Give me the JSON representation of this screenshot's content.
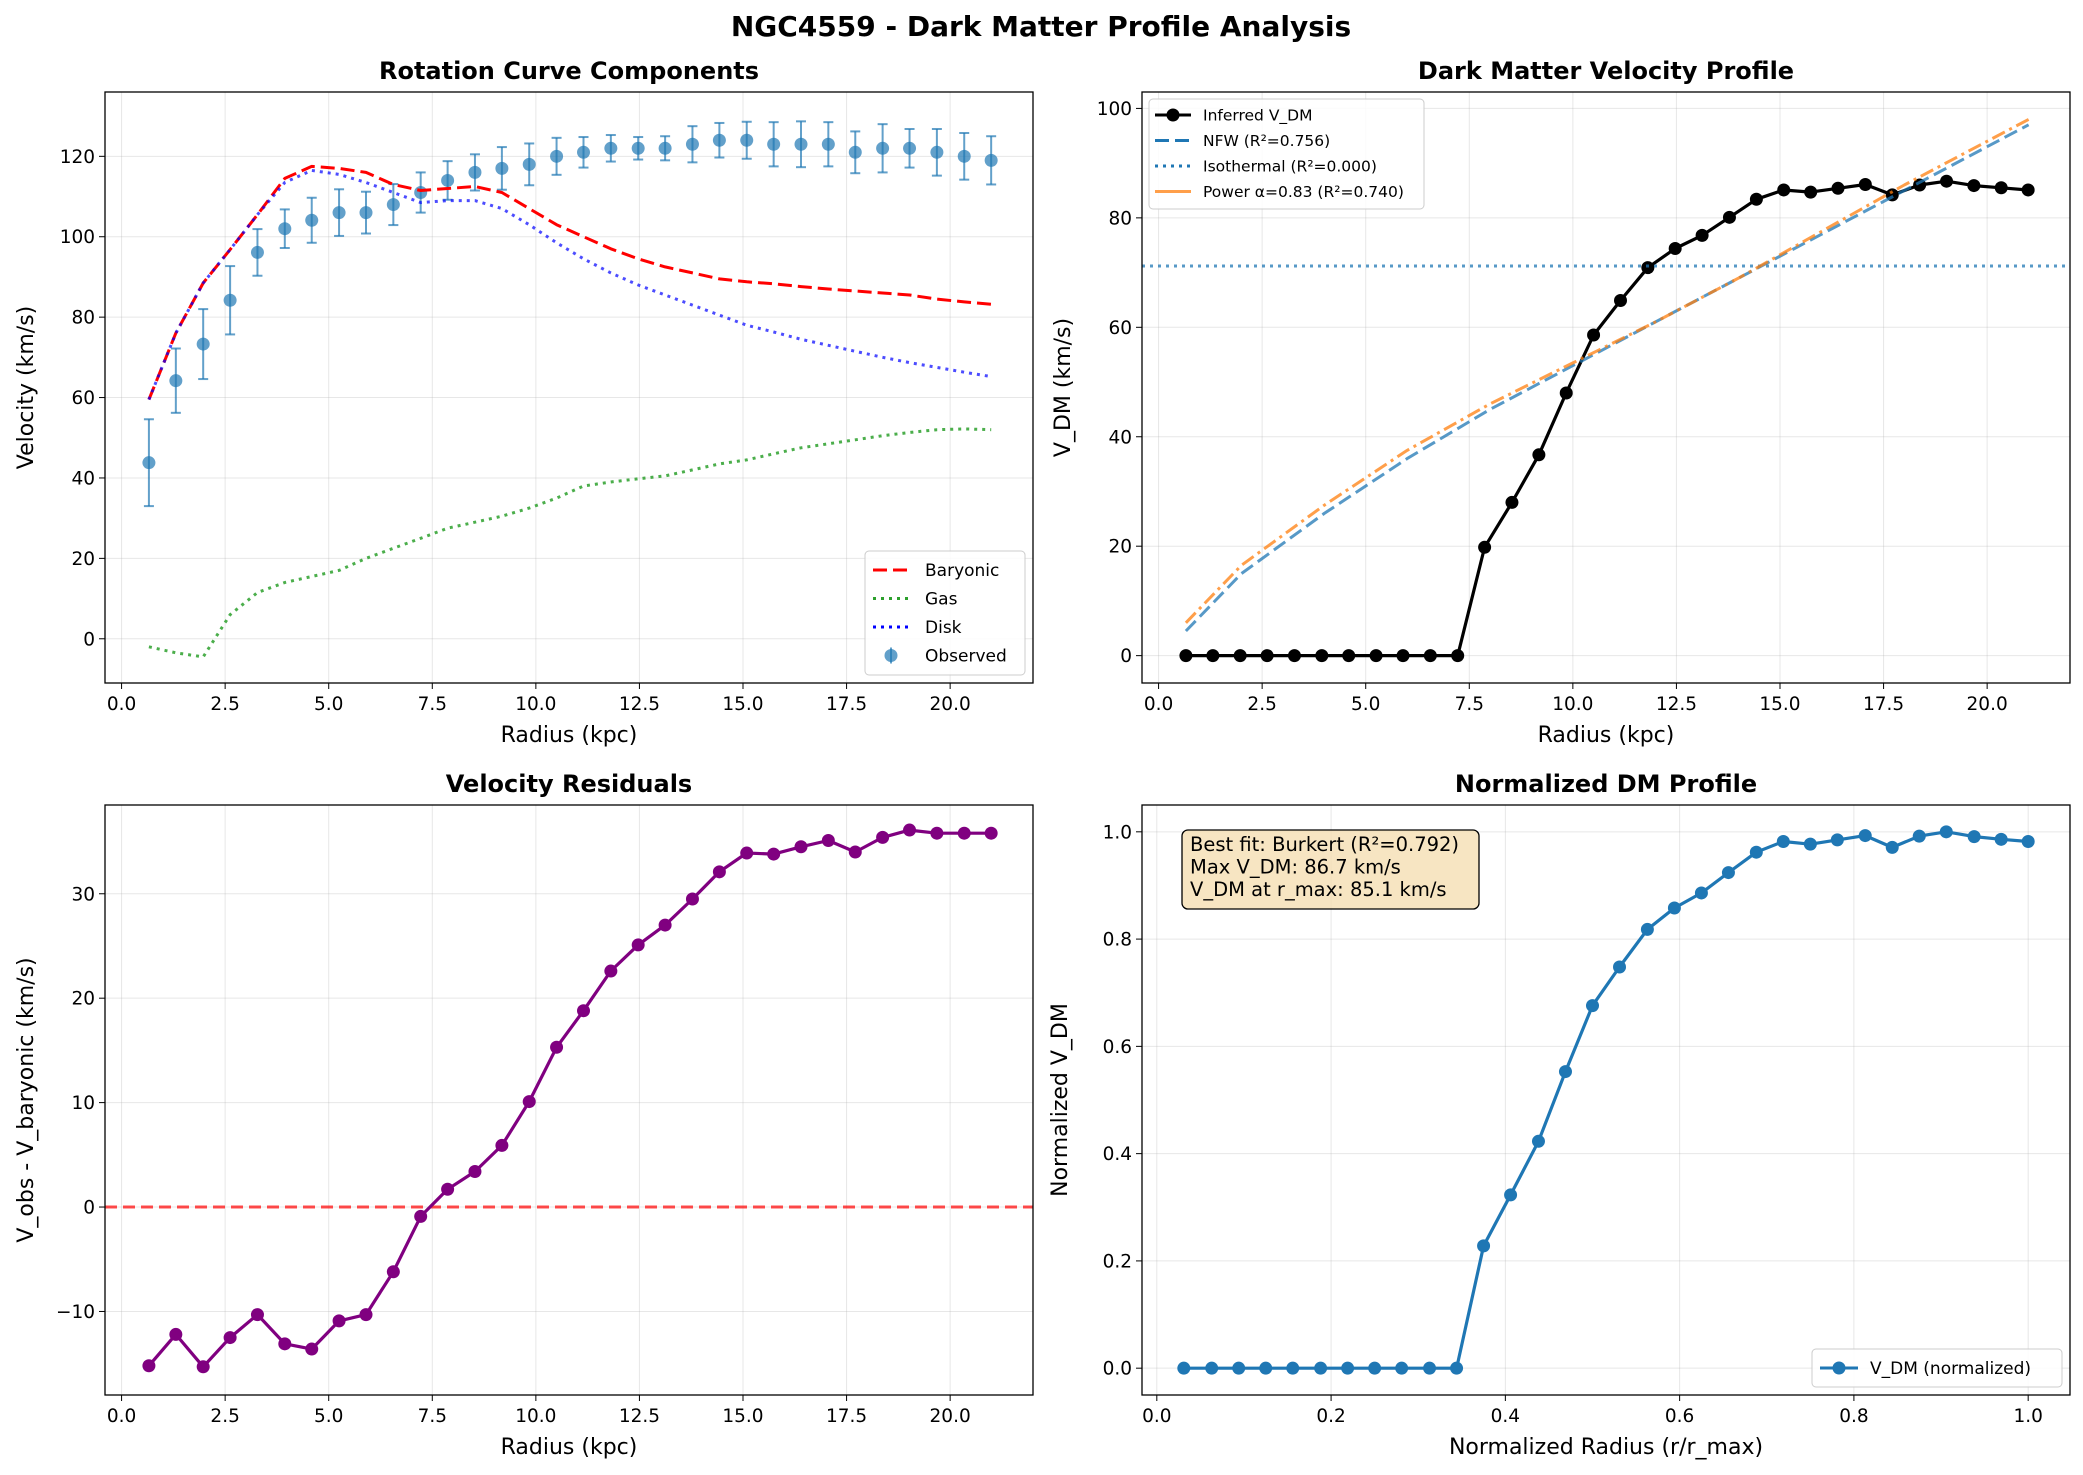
{
  "figure": {
    "title": "NGC4559 - Dark Matter Profile Analysis"
  },
  "chart_data": [
    {
      "type": "line",
      "title": "Rotation Curve Components",
      "xlabel": "Radius (kpc)",
      "ylabel": "Velocity (km/s)",
      "xlim": [
        -0.4,
        22.0
      ],
      "ylim": [
        -11,
        136
      ],
      "xticks": [
        "0.0",
        "2.5",
        "5.0",
        "7.5",
        "10.0",
        "12.5",
        "15.0",
        "17.5",
        "20.0"
      ],
      "yticks": [
        "0",
        "20",
        "40",
        "60",
        "80",
        "100",
        "120"
      ],
      "grid": true,
      "legend_position": "lower right",
      "legend": [
        "Baryonic",
        "Gas",
        "Disk",
        "Observed"
      ],
      "x": [
        0.66,
        1.31,
        1.97,
        2.62,
        3.28,
        3.94,
        4.59,
        5.25,
        5.9,
        6.56,
        7.22,
        7.87,
        8.53,
        9.18,
        9.84,
        10.5,
        11.15,
        11.81,
        12.47,
        13.12,
        13.78,
        14.43,
        15.09,
        15.74,
        16.4,
        17.06,
        17.71,
        18.37,
        19.02,
        19.68,
        20.34,
        20.99
      ],
      "series": [
        {
          "name": "Observed",
          "style": "errorbar",
          "color": "#1f77b4",
          "values": [
            43.8,
            64.2,
            73.3,
            84.2,
            96.1,
            102.0,
            104.1,
            106.0,
            106.0,
            108.0,
            111.0,
            114.0,
            116.0,
            117.0,
            118.0,
            120.0,
            121.0,
            122.0,
            122.0,
            122.0,
            123.0,
            124.0,
            124.0,
            123.0,
            123.0,
            123.0,
            121.0,
            122.0,
            122.0,
            121.0,
            120.0,
            119.0
          ],
          "errors": [
            10.8,
            8.0,
            8.7,
            8.5,
            5.8,
            4.8,
            5.6,
            5.8,
            5.2,
            5.1,
            5.0,
            4.8,
            4.5,
            5.3,
            5.2,
            4.6,
            3.8,
            3.3,
            2.8,
            3.0,
            4.5,
            4.3,
            4.6,
            5.5,
            5.7,
            5.5,
            5.2,
            6.0,
            4.8,
            5.8,
            5.8,
            6.0
          ]
        },
        {
          "name": "Baryonic",
          "style": "dashed",
          "color": "#ff0000",
          "values": [
            59.5,
            76.0,
            88.5,
            96.8,
            105.5,
            114.5,
            117.5,
            117.0,
            116.0,
            113.0,
            111.5,
            112.0,
            112.5,
            111.0,
            107.0,
            103.0,
            100.0,
            97.0,
            94.5,
            92.5,
            91.0,
            89.5,
            88.8,
            88.3,
            87.6,
            87.0,
            86.5,
            86.0,
            85.5,
            84.5,
            83.8,
            83.2
          ]
        },
        {
          "name": "Gas",
          "style": "dotted",
          "color": "#2ca02c",
          "values": [
            -2.0,
            -3.5,
            -4.5,
            6.0,
            11.5,
            14.0,
            15.5,
            17.0,
            20.0,
            22.5,
            25.0,
            27.5,
            29.0,
            30.5,
            32.5,
            35.0,
            38.0,
            39.0,
            39.8,
            40.5,
            42.0,
            43.5,
            44.5,
            46.0,
            47.5,
            48.5,
            49.5,
            50.5,
            51.3,
            52.0,
            52.2,
            52.0
          ]
        },
        {
          "name": "Disk",
          "style": "dotted",
          "color": "#0000ff",
          "values": [
            59.5,
            76.0,
            88.5,
            96.8,
            105.5,
            113.5,
            116.5,
            115.5,
            113.5,
            111.0,
            108.5,
            109.0,
            109.0,
            107.0,
            103.0,
            98.5,
            94.5,
            91.0,
            88.0,
            85.5,
            83.0,
            80.5,
            78.0,
            76.3,
            74.5,
            73.0,
            71.5,
            70.0,
            68.7,
            67.5,
            66.3,
            65.2
          ]
        }
      ]
    },
    {
      "type": "line",
      "title": "Dark Matter Velocity Profile",
      "xlabel": "Radius (kpc)",
      "ylabel": "V_DM (km/s)",
      "xlim": [
        -0.4,
        22.0
      ],
      "ylim": [
        -5,
        103
      ],
      "xticks": [
        "0.0",
        "2.5",
        "5.0",
        "7.5",
        "10.0",
        "12.5",
        "15.0",
        "17.5",
        "20.0"
      ],
      "yticks": [
        "0",
        "20",
        "40",
        "60",
        "80",
        "100"
      ],
      "grid": true,
      "legend_position": "upper left",
      "legend": [
        "Inferred V_DM",
        "NFW (R²=0.756)",
        "Isothermal (R²=0.000)",
        "Power α=0.83 (R²=0.740)"
      ],
      "x": [
        0.66,
        1.31,
        1.97,
        2.62,
        3.28,
        3.94,
        4.59,
        5.25,
        5.9,
        6.56,
        7.22,
        7.87,
        8.53,
        9.18,
        9.84,
        10.5,
        11.15,
        11.81,
        12.47,
        13.12,
        13.78,
        14.43,
        15.09,
        15.74,
        16.4,
        17.06,
        17.71,
        18.37,
        19.02,
        19.68,
        20.34,
        20.99
      ],
      "series": [
        {
          "name": "Inferred V_DM",
          "style": "solid-marker",
          "color": "#000000",
          "values": [
            0,
            0,
            0,
            0,
            0,
            0,
            0,
            0,
            0,
            0,
            0,
            19.8,
            28.0,
            36.7,
            48.0,
            58.6,
            64.9,
            70.9,
            74.4,
            76.8,
            80.1,
            83.4,
            85.1,
            84.7,
            85.4,
            86.1,
            84.2,
            86.0,
            86.7,
            85.9,
            85.5,
            85.1
          ]
        },
        {
          "name": "NFW (R²=0.756)",
          "style": "dashed",
          "color": "#1f77b4",
          "x": [
            0.66,
            2.0,
            4.0,
            6.0,
            8.0,
            10.0,
            12.0,
            14.0,
            16.0,
            18.0,
            20.0,
            21.0
          ],
          "values": [
            4.5,
            15.0,
            26.0,
            36.0,
            45.0,
            53.0,
            61.0,
            69.0,
            77.0,
            85.0,
            93.0,
            97.0
          ]
        },
        {
          "name": "Isothermal (R²=0.000)",
          "style": "dotted",
          "color": "#1f77b4",
          "x": [
            -0.4,
            22.0
          ],
          "values": [
            71.2,
            71.2
          ]
        },
        {
          "name": "Power α=0.83 (R²=0.740)",
          "style": "dashdot",
          "color": "#ff7f0e",
          "x": [
            0.66,
            2.0,
            4.0,
            6.0,
            8.0,
            10.0,
            12.0,
            14.0,
            16.0,
            18.0,
            20.0,
            21.0
          ],
          "values": [
            6.0,
            16.5,
            27.5,
            37.5,
            46.0,
            53.5,
            61.0,
            69.0,
            77.5,
            86.0,
            94.0,
            98.0
          ]
        }
      ]
    },
    {
      "type": "line",
      "title": "Velocity Residuals",
      "xlabel": "Radius (kpc)",
      "ylabel": "V_obs - V_baryonic (km/s)",
      "xlim": [
        -0.4,
        22.0
      ],
      "ylim": [
        -18,
        38.5
      ],
      "xticks": [
        "0.0",
        "2.5",
        "5.0",
        "7.5",
        "10.0",
        "12.5",
        "15.0",
        "17.5",
        "20.0"
      ],
      "yticks": [
        "−10",
        "0",
        "10",
        "20",
        "30"
      ],
      "grid": true,
      "reference_line": 0,
      "x": [
        0.66,
        1.31,
        1.97,
        2.62,
        3.28,
        3.94,
        4.59,
        5.25,
        5.9,
        6.56,
        7.22,
        7.87,
        8.53,
        9.18,
        9.84,
        10.5,
        11.15,
        11.81,
        12.47,
        13.12,
        13.78,
        14.43,
        15.09,
        15.74,
        16.4,
        17.06,
        17.71,
        18.37,
        19.02,
        19.68,
        20.34,
        20.99
      ],
      "series": [
        {
          "name": "",
          "style": "solid-marker",
          "color": "#800080",
          "values": [
            -15.2,
            -12.2,
            -15.3,
            -12.5,
            -10.3,
            -13.1,
            -13.6,
            -10.9,
            -10.3,
            -6.2,
            -0.9,
            1.7,
            3.4,
            5.9,
            10.1,
            15.3,
            18.8,
            22.6,
            25.1,
            27.0,
            29.5,
            32.1,
            33.9,
            33.8,
            34.5,
            35.1,
            34.0,
            35.4,
            36.1,
            35.8,
            35.8,
            35.8
          ]
        }
      ]
    },
    {
      "type": "line",
      "title": "Normalized DM Profile",
      "xlabel": "Normalized Radius (r/r_max)",
      "ylabel": "Normalized V_DM",
      "xlim": [
        -0.017,
        1.048
      ],
      "ylim": [
        -0.05,
        1.05
      ],
      "xticks": [
        "0.0",
        "0.2",
        "0.4",
        "0.6",
        "0.8",
        "1.0"
      ],
      "yticks": [
        "0.0",
        "0.2",
        "0.4",
        "0.6",
        "0.8",
        "1.0"
      ],
      "grid": true,
      "legend_position": "lower right",
      "legend": [
        "V_DM (normalized)"
      ],
      "annotation": [
        "Best fit: Burkert (R²=0.792)",
        "Max V_DM: 86.7 km/s",
        "V_DM at r_max: 85.1 km/s"
      ],
      "x": [
        0.031,
        0.063,
        0.094,
        0.125,
        0.156,
        0.188,
        0.219,
        0.25,
        0.281,
        0.313,
        0.344,
        0.375,
        0.406,
        0.438,
        0.469,
        0.5,
        0.531,
        0.563,
        0.594,
        0.625,
        0.656,
        0.688,
        0.719,
        0.75,
        0.781,
        0.813,
        0.844,
        0.875,
        0.906,
        0.938,
        0.969,
        1.0
      ],
      "series": [
        {
          "name": "V_DM (normalized)",
          "style": "solid-marker",
          "color": "#1f77b4",
          "values": [
            0,
            0,
            0,
            0,
            0,
            0,
            0,
            0,
            0,
            0,
            0,
            0.228,
            0.323,
            0.423,
            0.553,
            0.676,
            0.748,
            0.818,
            0.858,
            0.886,
            0.924,
            0.962,
            0.982,
            0.977,
            0.985,
            0.993,
            0.971,
            0.992,
            1.0,
            0.991,
            0.986,
            0.982
          ]
        }
      ]
    }
  ]
}
